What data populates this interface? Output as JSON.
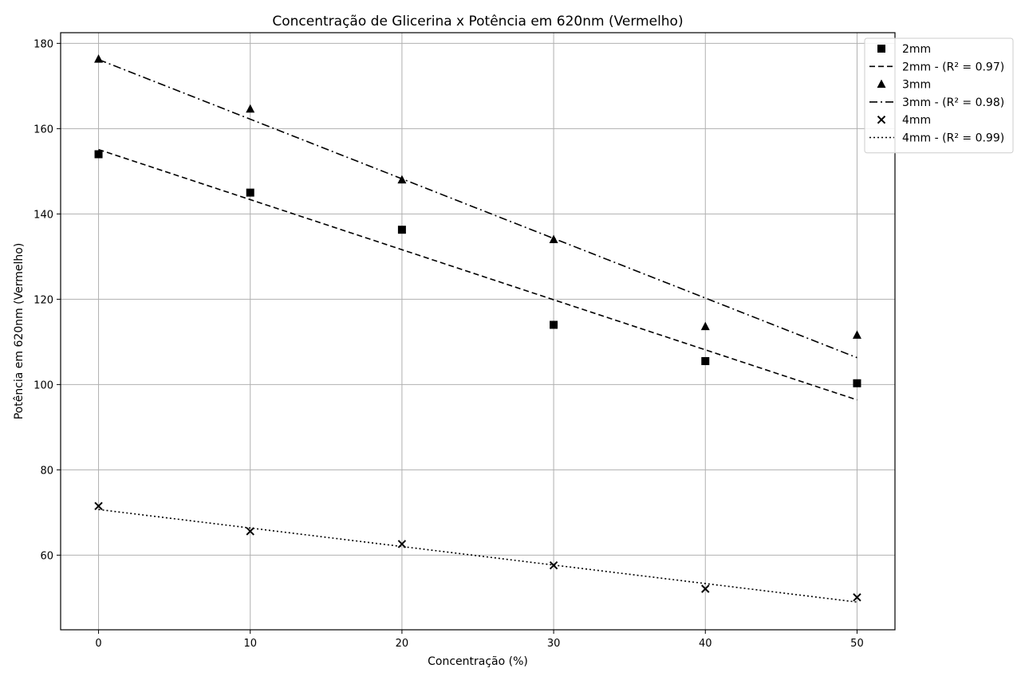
{
  "chart_data": {
    "type": "scatter",
    "title": "Concentração de Glicerina x Potência em 620nm (Vermelho)",
    "xlabel": "Concentração (%)",
    "ylabel": "Potência em 620nm (Vermelho)",
    "xlim": [
      -2.5,
      52.5
    ],
    "ylim": [
      42.5,
      182.5
    ],
    "xticks": [
      0,
      10,
      20,
      30,
      40,
      50
    ],
    "yticks": [
      60,
      80,
      100,
      120,
      140,
      160,
      180
    ],
    "grid": true,
    "legend_position": "upper-right",
    "series": [
      {
        "name": "2mm",
        "marker": "square",
        "x": [
          0,
          10,
          20,
          30,
          40,
          50
        ],
        "y": [
          154,
          145,
          136.3,
          114,
          105.5,
          100.3
        ],
        "fit_label": "2mm - (R² = 0.97)",
        "fit_style": "dashed",
        "fit": {
          "x": [
            0,
            50
          ],
          "y": [
            155.1,
            96.4
          ]
        }
      },
      {
        "name": "3mm",
        "marker": "triangle",
        "x": [
          0,
          10,
          20,
          30,
          40,
          50
        ],
        "y": [
          176.3,
          164.6,
          148,
          134,
          113.6,
          111.6
        ],
        "fit_label": "3mm - (R² = 0.98)",
        "fit_style": "dashdot",
        "fit": {
          "x": [
            0,
            50
          ],
          "y": [
            176.2,
            106.3
          ]
        }
      },
      {
        "name": "4mm",
        "marker": "x",
        "x": [
          0,
          10,
          20,
          30,
          40,
          50
        ],
        "y": [
          71.5,
          65.6,
          62.6,
          57.6,
          52.1,
          50.1
        ],
        "fit_label": "4mm - (R² = 0.99)",
        "fit_style": "dotted",
        "fit": {
          "x": [
            0,
            50
          ],
          "y": [
            70.7,
            49.0
          ]
        }
      }
    ]
  }
}
